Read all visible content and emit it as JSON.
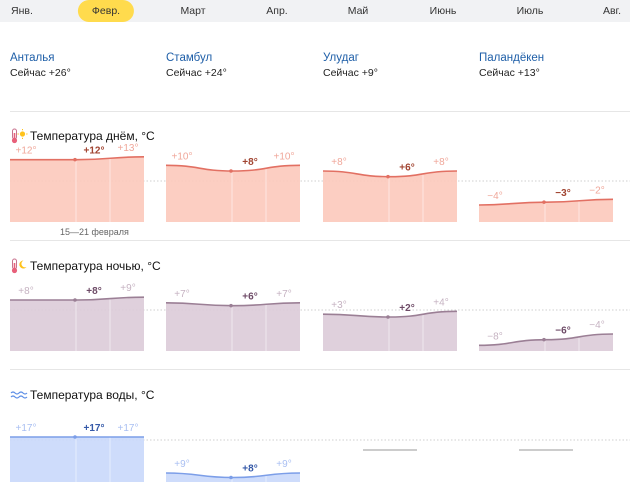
{
  "months": [
    "Янв.",
    "Февр.",
    "Март",
    "Апр.",
    "Май",
    "Июнь",
    "Июль",
    "Авг."
  ],
  "active_month_index": 1,
  "cities": [
    {
      "name": "Анталья",
      "now": "Сейчас +26°"
    },
    {
      "name": "Стамбул",
      "now": "Сейчас +24°"
    },
    {
      "name": "Улудаг",
      "now": "Сейчас +9°"
    },
    {
      "name": "Паландёкен",
      "now": "Сейчас +13°"
    }
  ],
  "sections": {
    "day": {
      "title": "Температура днём, °C",
      "icon": "thermometer-sun-icon"
    },
    "night": {
      "title": "Температура ночью, °C",
      "icon": "thermometer-moon-icon"
    },
    "water": {
      "title": "Температура воды, °C",
      "icon": "water-waves-icon"
    }
  },
  "week_note": "15—21 февраля",
  "colors": {
    "day_line": "#e27063",
    "day_fill": "#fcc9bb",
    "night_line": "#9b7f95",
    "night_fill": "#dccbd8",
    "water_line": "#7c9ee8",
    "water_fill": "#c9d8fb",
    "active_month": "#ffdb4d",
    "city_link": "#1f5fa8"
  },
  "chart_data": [
    {
      "type": "area",
      "title": "Температура днём, °C",
      "series": [
        {
          "name": "Анталья",
          "values": [
            12,
            12,
            13
          ],
          "labels": [
            "+12°",
            "+12°",
            "+13°"
          ]
        },
        {
          "name": "Стамбул",
          "values": [
            10,
            8,
            10
          ],
          "labels": [
            "+10°",
            "+8°",
            "+10°"
          ]
        },
        {
          "name": "Улудаг",
          "values": [
            8,
            6,
            8
          ],
          "labels": [
            "+8°",
            "+6°",
            "+8°"
          ]
        },
        {
          "name": "Паландёкен",
          "values": [
            -4,
            -3,
            -2
          ],
          "labels": [
            "−4°",
            "−3°",
            "−2°"
          ]
        }
      ]
    },
    {
      "type": "area",
      "title": "Температура ночью, °C",
      "series": [
        {
          "name": "Анталья",
          "values": [
            8,
            8,
            9
          ],
          "labels": [
            "+8°",
            "+8°",
            "+9°"
          ]
        },
        {
          "name": "Стамбул",
          "values": [
            7,
            6,
            7
          ],
          "labels": [
            "+7°",
            "+6°",
            "+7°"
          ]
        },
        {
          "name": "Улудаг",
          "values": [
            3,
            2,
            4
          ],
          "labels": [
            "+3°",
            "+2°",
            "+4°"
          ]
        },
        {
          "name": "Паландёкен",
          "values": [
            -8,
            -6,
            -4
          ],
          "labels": [
            "−8°",
            "−6°",
            "−4°"
          ]
        }
      ]
    },
    {
      "type": "area",
      "title": "Температура воды, °C",
      "series": [
        {
          "name": "Анталья",
          "values": [
            17,
            17,
            17
          ],
          "labels": [
            "+17°",
            "+17°",
            "+17°"
          ]
        },
        {
          "name": "Стамбул",
          "values": [
            9,
            8,
            9
          ],
          "labels": [
            "+9°",
            "+8°",
            "+9°"
          ]
        },
        {
          "name": "Улудаг",
          "values": [],
          "labels": []
        },
        {
          "name": "Паландёкен",
          "values": [],
          "labels": []
        }
      ]
    }
  ]
}
